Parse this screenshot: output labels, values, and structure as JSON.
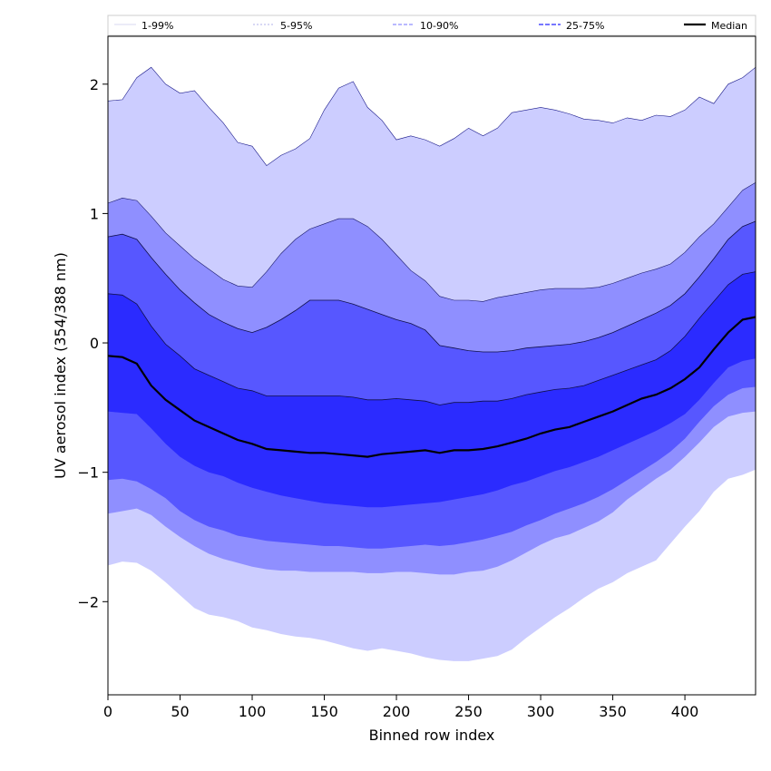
{
  "chart_data": {
    "type": "area",
    "title": "",
    "xlabel": "Binned row index",
    "ylabel": "UV aerosol index (354/388 nm)",
    "xlim": [
      0,
      449
    ],
    "ylim": [
      -2.72,
      2.37
    ],
    "xticks": [
      0,
      50,
      100,
      150,
      200,
      250,
      300,
      350,
      400
    ],
    "yticks": [
      2,
      1,
      0,
      -1,
      -2
    ],
    "ytick_labels": [
      "2",
      "1",
      "0",
      "−1",
      "−2"
    ],
    "grid": false,
    "legend_position": "top (horizontal strip above plot)",
    "x": [
      0,
      10,
      20,
      30,
      40,
      50,
      60,
      70,
      80,
      90,
      100,
      110,
      120,
      130,
      140,
      150,
      160,
      170,
      180,
      190,
      200,
      210,
      220,
      230,
      240,
      250,
      260,
      270,
      280,
      290,
      300,
      310,
      320,
      330,
      340,
      350,
      360,
      370,
      380,
      390,
      400,
      410,
      420,
      430,
      440,
      449
    ],
    "series": [
      {
        "name": "1-99%",
        "color": "#cccdff",
        "lower": [
          -1.72,
          -1.69,
          -1.7,
          -1.76,
          -1.85,
          -1.95,
          -2.05,
          -2.1,
          -2.12,
          -2.15,
          -2.2,
          -2.22,
          -2.25,
          -2.27,
          -2.28,
          -2.3,
          -2.33,
          -2.36,
          -2.38,
          -2.36,
          -2.38,
          -2.4,
          -2.43,
          -2.45,
          -2.46,
          -2.46,
          -2.44,
          -2.42,
          -2.37,
          -2.28,
          -2.2,
          -2.12,
          -2.05,
          -1.97,
          -1.9,
          -1.85,
          -1.78,
          -1.73,
          -1.68,
          -1.55,
          -1.42,
          -1.3,
          -1.15,
          -1.05,
          -1.02,
          -0.98
        ],
        "upper": [
          1.87,
          1.88,
          2.05,
          2.13,
          2.0,
          1.93,
          1.95,
          1.82,
          1.7,
          1.55,
          1.52,
          1.37,
          1.45,
          1.5,
          1.58,
          1.8,
          1.97,
          2.02,
          1.82,
          1.72,
          1.57,
          1.6,
          1.57,
          1.52,
          1.58,
          1.66,
          1.6,
          1.66,
          1.78,
          1.8,
          1.82,
          1.8,
          1.77,
          1.73,
          1.72,
          1.7,
          1.74,
          1.72,
          1.76,
          1.75,
          1.8,
          1.9,
          1.85,
          2.0,
          2.05,
          2.13
        ]
      },
      {
        "name": "5-95%",
        "color": "#8f8fff",
        "lower": [
          -1.32,
          -1.3,
          -1.28,
          -1.33,
          -1.42,
          -1.5,
          -1.57,
          -1.63,
          -1.67,
          -1.7,
          -1.73,
          -1.75,
          -1.76,
          -1.76,
          -1.77,
          -1.77,
          -1.77,
          -1.77,
          -1.78,
          -1.78,
          -1.77,
          -1.77,
          -1.78,
          -1.79,
          -1.79,
          -1.77,
          -1.76,
          -1.73,
          -1.68,
          -1.62,
          -1.56,
          -1.51,
          -1.48,
          -1.43,
          -1.38,
          -1.31,
          -1.21,
          -1.13,
          -1.05,
          -0.98,
          -0.88,
          -0.77,
          -0.65,
          -0.57,
          -0.54,
          -0.53
        ],
        "upper": [
          1.08,
          1.12,
          1.1,
          0.98,
          0.85,
          0.75,
          0.65,
          0.57,
          0.49,
          0.44,
          0.43,
          0.55,
          0.69,
          0.8,
          0.88,
          0.92,
          0.96,
          0.96,
          0.9,
          0.8,
          0.68,
          0.56,
          0.48,
          0.36,
          0.33,
          0.33,
          0.32,
          0.35,
          0.37,
          0.39,
          0.41,
          0.42,
          0.42,
          0.42,
          0.43,
          0.46,
          0.5,
          0.54,
          0.57,
          0.61,
          0.7,
          0.82,
          0.92,
          1.05,
          1.18,
          1.24
        ]
      },
      {
        "name": "10-90%",
        "color": "#5757ff",
        "lower": [
          -1.06,
          -1.05,
          -1.07,
          -1.13,
          -1.2,
          -1.3,
          -1.37,
          -1.42,
          -1.45,
          -1.49,
          -1.51,
          -1.53,
          -1.54,
          -1.55,
          -1.56,
          -1.57,
          -1.57,
          -1.58,
          -1.59,
          -1.59,
          -1.58,
          -1.57,
          -1.56,
          -1.57,
          -1.56,
          -1.54,
          -1.52,
          -1.49,
          -1.46,
          -1.41,
          -1.37,
          -1.32,
          -1.28,
          -1.24,
          -1.19,
          -1.13,
          -1.06,
          -0.99,
          -0.92,
          -0.84,
          -0.74,
          -0.61,
          -0.49,
          -0.4,
          -0.35,
          -0.34
        ]
      },
      {
        "name": "25-75%",
        "color": "#2b2bff",
        "lower": [
          -0.53,
          -0.54,
          -0.55,
          -0.66,
          -0.78,
          -0.88,
          -0.95,
          -1.0,
          -1.03,
          -1.08,
          -1.12,
          -1.15,
          -1.18,
          -1.2,
          -1.22,
          -1.24,
          -1.25,
          -1.26,
          -1.27,
          -1.27,
          -1.26,
          -1.25,
          -1.24,
          -1.23,
          -1.21,
          -1.19,
          -1.17,
          -1.14,
          -1.1,
          -1.07,
          -1.03,
          -0.99,
          -0.96,
          -0.92,
          -0.88,
          -0.83,
          -0.78,
          -0.73,
          -0.68,
          -0.62,
          -0.55,
          -0.44,
          -0.31,
          -0.19,
          -0.14,
          -0.12
        ]
      },
      {
        "name": "Median",
        "color": "#000000",
        "values": [
          -0.1,
          -0.11,
          -0.16,
          -0.33,
          -0.44,
          -0.52,
          -0.6,
          -0.65,
          -0.7,
          -0.75,
          -0.78,
          -0.82,
          -0.83,
          -0.84,
          -0.85,
          -0.85,
          -0.86,
          -0.87,
          -0.88,
          -0.86,
          -0.85,
          -0.84,
          -0.83,
          -0.85,
          -0.83,
          -0.83,
          -0.82,
          -0.8,
          -0.77,
          -0.74,
          -0.7,
          -0.67,
          -0.65,
          -0.61,
          -0.57,
          -0.53,
          -0.48,
          -0.43,
          -0.4,
          -0.35,
          -0.28,
          -0.19,
          -0.05,
          0.08,
          0.18,
          0.2
        ]
      }
    ],
    "band_edges": {
      "10-90% upper": [
        0.82,
        0.84,
        0.8,
        0.66,
        0.53,
        0.41,
        0.31,
        0.22,
        0.16,
        0.11,
        0.08,
        0.12,
        0.18,
        0.25,
        0.33,
        0.33,
        0.33,
        0.3,
        0.26,
        0.22,
        0.18,
        0.15,
        0.1,
        -0.02,
        -0.04,
        -0.06,
        -0.07,
        -0.07,
        -0.06,
        -0.04,
        -0.03,
        -0.02,
        -0.01,
        0.01,
        0.04,
        0.08,
        0.13,
        0.18,
        0.23,
        0.29,
        0.38,
        0.51,
        0.65,
        0.8,
        0.9,
        0.94
      ],
      "25-75% upper": [
        0.38,
        0.37,
        0.3,
        0.13,
        -0.01,
        -0.1,
        -0.2,
        -0.25,
        -0.3,
        -0.35,
        -0.37,
        -0.41,
        -0.41,
        -0.41,
        -0.41,
        -0.41,
        -0.41,
        -0.42,
        -0.44,
        -0.44,
        -0.43,
        -0.44,
        -0.45,
        -0.48,
        -0.46,
        -0.46,
        -0.45,
        -0.45,
        -0.43,
        -0.4,
        -0.38,
        -0.36,
        -0.35,
        -0.33,
        -0.29,
        -0.25,
        -0.21,
        -0.17,
        -0.13,
        -0.06,
        0.05,
        0.19,
        0.32,
        0.45,
        0.53,
        0.55
      ]
    }
  }
}
